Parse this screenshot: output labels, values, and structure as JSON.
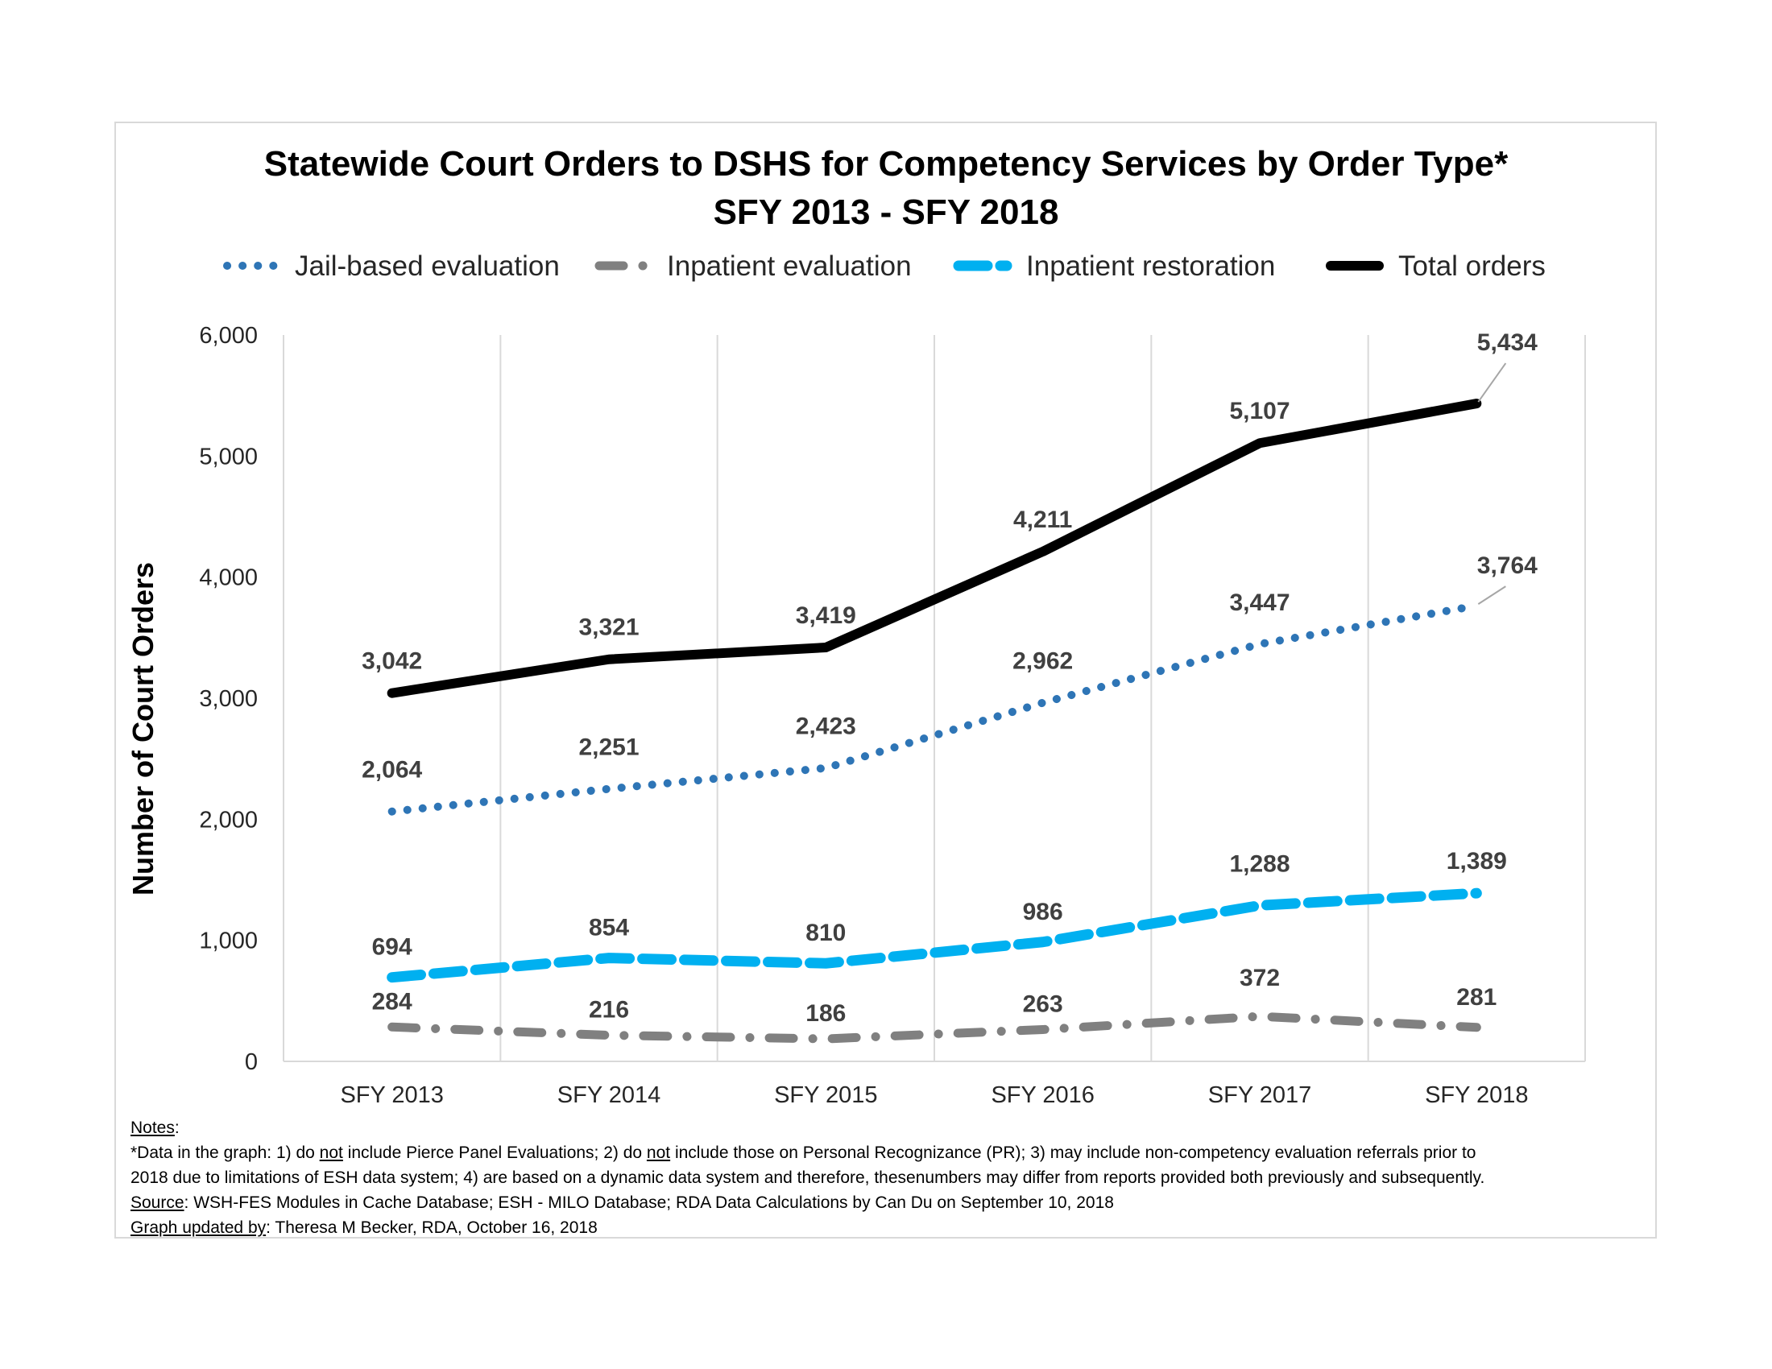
{
  "chart_data": {
    "type": "line",
    "title": "Statewide Court Orders to DSHS for Competency Services by Order Type*",
    "subtitle": "SFY 2013 - SFY 2018",
    "ylabel": "Number of Court Orders",
    "xlabel": "",
    "ylim": [
      0,
      6000
    ],
    "yticks": [
      0,
      1000,
      2000,
      3000,
      4000,
      5000,
      6000
    ],
    "ytick_labels": [
      "0",
      "1,000",
      "2,000",
      "3,000",
      "4,000",
      "5,000",
      "6,000"
    ],
    "grid": "vertical",
    "legend": "top",
    "categories": [
      "SFY 2013",
      "SFY 2014",
      "SFY 2015",
      "SFY 2016",
      "SFY 2017",
      "SFY 2018"
    ],
    "series": [
      {
        "name": "Jail-based evaluation",
        "values": [
          2064,
          2251,
          2423,
          2962,
          3447,
          3764
        ],
        "labels": [
          "2,064",
          "2,251",
          "2,423",
          "2,962",
          "3,447",
          "3,764"
        ],
        "color": "#2e75b6",
        "style": "dotted"
      },
      {
        "name": "Inpatient evaluation",
        "values": [
          284,
          216,
          186,
          263,
          372,
          281
        ],
        "labels": [
          "284",
          "216",
          "186",
          "263",
          "372",
          "281"
        ],
        "color": "#808080",
        "style": "dash-dot"
      },
      {
        "name": "Inpatient restoration",
        "values": [
          694,
          854,
          810,
          986,
          1288,
          1389
        ],
        "labels": [
          "694",
          "854",
          "810",
          "986",
          "1,288",
          "1,389"
        ],
        "color": "#00b0f0",
        "style": "dashed"
      },
      {
        "name": "Total orders",
        "values": [
          3042,
          3321,
          3419,
          4211,
          5107,
          5434
        ],
        "labels": [
          "3,042",
          "3,321",
          "3,419",
          "4,211",
          "5,107",
          "5,434"
        ],
        "color": "#000000",
        "style": "solid"
      }
    ]
  },
  "notes": {
    "heading": "Notes",
    "heading_suffix": ":",
    "line1_a": "*Data in the graph: 1) do ",
    "line1_not1": "not",
    "line1_b": " include Pierce Panel Evaluations; 2) do ",
    "line1_not2": "not",
    "line1_c": " include those on Personal Recognizance (PR); 3) may include non-competency evaluation referrals prior to",
    "line2": "2018 due to limitations of ESH data system; 4) are based on a dynamic data system and therefore, thesenumbers may differ from reports provided both previously and subsequently.",
    "source_label": "Source",
    "source_text": ": WSH-FES Modules in Cache Database; ESH - MILO Database; RDA Data Calculations by Can Du on September 10, 2018",
    "updated_label": "Graph updated by",
    "updated_text": ": Theresa M Becker, RDA, October 16, 2018"
  }
}
